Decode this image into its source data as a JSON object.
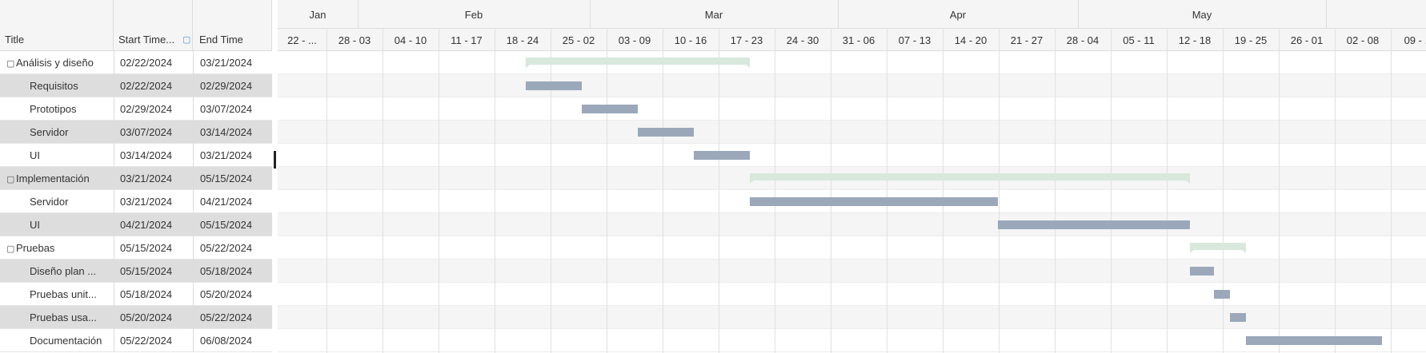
{
  "grid": {
    "columns": {
      "title": "Title",
      "start": "Start Time...",
      "end": "End Time"
    },
    "sort_icon": "filter-icon",
    "tasks": [
      {
        "id": "t1",
        "title": "Análisis y diseño",
        "start": "02/22/2024",
        "end": "03/21/2024",
        "summary": true,
        "level": 0,
        "toggle": "▢"
      },
      {
        "id": "t2",
        "title": "Requisitos",
        "start": "02/22/2024",
        "end": "02/29/2024",
        "summary": false,
        "level": 1
      },
      {
        "id": "t3",
        "title": "Prototipos",
        "start": "02/29/2024",
        "end": "03/07/2024",
        "summary": false,
        "level": 1
      },
      {
        "id": "t4",
        "title": "Servidor",
        "start": "03/07/2024",
        "end": "03/14/2024",
        "summary": false,
        "level": 1
      },
      {
        "id": "t5",
        "title": "UI",
        "start": "03/14/2024",
        "end": "03/21/2024",
        "summary": false,
        "level": 1
      },
      {
        "id": "t6",
        "title": "Implementación",
        "start": "03/21/2024",
        "end": "05/15/2024",
        "summary": true,
        "level": 0,
        "toggle": "▢"
      },
      {
        "id": "t7",
        "title": "Servidor",
        "start": "03/21/2024",
        "end": "04/21/2024",
        "summary": false,
        "level": 1
      },
      {
        "id": "t8",
        "title": "UI",
        "start": "04/21/2024",
        "end": "05/15/2024",
        "summary": false,
        "level": 1
      },
      {
        "id": "t9",
        "title": "Pruebas",
        "start": "05/15/2024",
        "end": "05/22/2024",
        "summary": true,
        "level": 0,
        "toggle": "▢"
      },
      {
        "id": "t10",
        "title": "Diseño plan ...",
        "start": "05/15/2024",
        "end": "05/18/2024",
        "summary": false,
        "level": 1
      },
      {
        "id": "t11",
        "title": "Pruebas unit...",
        "start": "05/18/2024",
        "end": "05/20/2024",
        "summary": false,
        "level": 1
      },
      {
        "id": "t12",
        "title": "Pruebas usa...",
        "start": "05/20/2024",
        "end": "05/22/2024",
        "summary": false,
        "level": 1
      },
      {
        "id": "t13",
        "title": "Documentación",
        "start": "05/22/2024",
        "end": "06/08/2024",
        "summary": false,
        "level": 1
      }
    ]
  },
  "timeline": {
    "timeline_start": "2024-01-22",
    "months": [
      {
        "label": "Jan",
        "start": "2024-01-22",
        "end": "2024-02-01"
      },
      {
        "label": "Feb",
        "start": "2024-02-01",
        "end": "2024-03-01"
      },
      {
        "label": "Mar",
        "start": "2024-03-01",
        "end": "2024-04-01"
      },
      {
        "label": "Apr",
        "start": "2024-04-01",
        "end": "2024-05-01"
      },
      {
        "label": "May",
        "start": "2024-05-01",
        "end": "2024-06-01"
      },
      {
        "label": "",
        "start": "2024-06-01",
        "end": "2024-07-01"
      }
    ],
    "weeks": [
      "22 - ...",
      "28 - 03",
      "04 - 10",
      "11 - 17",
      "18 - 24",
      "25 - 02",
      "03 - 09",
      "10 - 16",
      "17 - 23",
      "24 - 30",
      "31 - 06",
      "07 - 13",
      "14 - 20",
      "21 - 27",
      "28 - 04",
      "05 - 11",
      "12 - 18",
      "19 - 25",
      "26 - 01",
      "02 - 08",
      "09 - ..."
    ]
  },
  "colors": {
    "task_bar": "#9aa8ba",
    "summary_bar": "#d8e8dc",
    "row_alt": "#f5f5f5",
    "grid_line": "#e0e0e0",
    "header_bg": "#f5f5f5"
  }
}
